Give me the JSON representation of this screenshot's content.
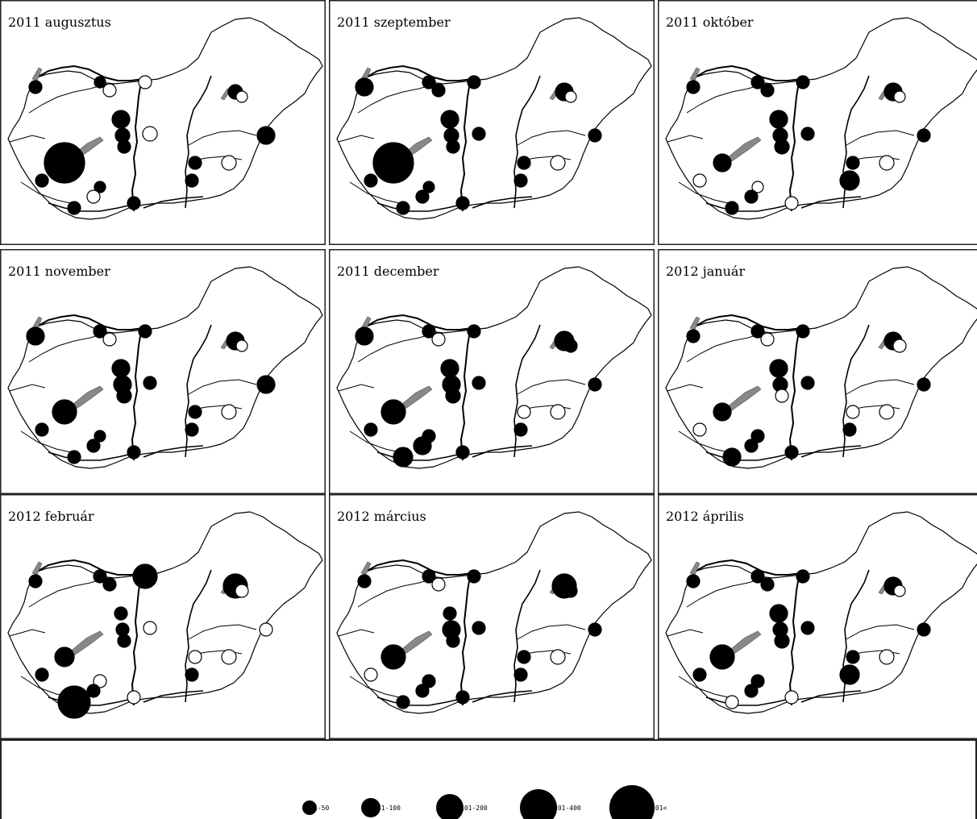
{
  "panels": [
    {
      "title": "2011 augusztus",
      "sites": [
        {
          "site": "1",
          "r": 8
        },
        {
          "site": "2",
          "r": 7
        },
        {
          "site": "3",
          "open": true,
          "r": 8
        },
        {
          "site": "4",
          "open": true,
          "r": 8
        },
        {
          "site": "5",
          "r": 11
        },
        {
          "site": "6",
          "r": 9
        },
        {
          "site": "7",
          "r": 8
        },
        {
          "site": "8",
          "open": true,
          "r": 9
        },
        {
          "site": "9",
          "r": 25
        },
        {
          "site": "10",
          "r": 8
        },
        {
          "site": "11",
          "r": 8
        },
        {
          "site": "12",
          "r": 7
        },
        {
          "site": "13",
          "open": true,
          "r": 8
        },
        {
          "site": "14",
          "r": 8
        },
        {
          "site": "15",
          "r": 9
        },
        {
          "site": "16",
          "open": true,
          "r": 7
        },
        {
          "site": "17",
          "r": 8
        },
        {
          "site": "18",
          "r": 8
        },
        {
          "site": "19",
          "r": 11
        },
        {
          "site": "20",
          "open": true,
          "r": 9
        }
      ]
    },
    {
      "title": "2011 szeptember",
      "sites": [
        {
          "site": "1",
          "r": 11
        },
        {
          "site": "2",
          "r": 8
        },
        {
          "site": "3",
          "r": 8
        },
        {
          "site": "4",
          "r": 8
        },
        {
          "site": "5",
          "r": 11
        },
        {
          "site": "6",
          "r": 9
        },
        {
          "site": "7",
          "r": 8
        },
        {
          "site": "8",
          "r": 8
        },
        {
          "site": "9",
          "r": 25
        },
        {
          "site": "10",
          "r": 8
        },
        {
          "site": "11",
          "r": 8
        },
        {
          "site": "12",
          "r": 7
        },
        {
          "site": "13",
          "r": 8
        },
        {
          "site": "14",
          "r": 8
        },
        {
          "site": "15",
          "r": 11
        },
        {
          "site": "16",
          "open": true,
          "r": 7
        },
        {
          "site": "17",
          "r": 8
        },
        {
          "site": "18",
          "r": 8
        },
        {
          "site": "19",
          "r": 8
        },
        {
          "site": "20",
          "open": true,
          "r": 9
        }
      ]
    },
    {
      "title": "2011 október",
      "sites": [
        {
          "site": "1",
          "r": 8
        },
        {
          "site": "2",
          "r": 8
        },
        {
          "site": "3",
          "r": 8
        },
        {
          "site": "4",
          "r": 8
        },
        {
          "site": "5",
          "r": 11
        },
        {
          "site": "6",
          "r": 9
        },
        {
          "site": "7",
          "r": 9
        },
        {
          "site": "8",
          "r": 8
        },
        {
          "site": "9",
          "r": 11
        },
        {
          "site": "10",
          "open": true,
          "r": 8
        },
        {
          "site": "11",
          "r": 8
        },
        {
          "site": "12",
          "open": true,
          "r": 7
        },
        {
          "site": "13",
          "r": 8
        },
        {
          "site": "14",
          "open": true,
          "r": 8
        },
        {
          "site": "15",
          "r": 11
        },
        {
          "site": "16",
          "open": true,
          "r": 7
        },
        {
          "site": "17",
          "r": 12
        },
        {
          "site": "18",
          "r": 8
        },
        {
          "site": "19",
          "r": 8
        },
        {
          "site": "20",
          "open": true,
          "r": 9
        }
      ]
    },
    {
      "title": "2011 november",
      "sites": [
        {
          "site": "1",
          "r": 11
        },
        {
          "site": "2",
          "r": 8
        },
        {
          "site": "3",
          "open": true,
          "r": 8
        },
        {
          "site": "4",
          "r": 8
        },
        {
          "site": "5",
          "r": 11
        },
        {
          "site": "6",
          "r": 11
        },
        {
          "site": "7",
          "r": 9
        },
        {
          "site": "8",
          "r": 8
        },
        {
          "site": "9",
          "r": 15
        },
        {
          "site": "10",
          "r": 8
        },
        {
          "site": "11",
          "r": 8
        },
        {
          "site": "12",
          "r": 7
        },
        {
          "site": "13",
          "r": 8
        },
        {
          "site": "14",
          "r": 8
        },
        {
          "site": "15",
          "r": 11
        },
        {
          "site": "16",
          "open": true,
          "r": 7
        },
        {
          "site": "17",
          "r": 8
        },
        {
          "site": "18",
          "r": 8
        },
        {
          "site": "19",
          "r": 11
        },
        {
          "site": "20",
          "open": true,
          "r": 9
        }
      ]
    },
    {
      "title": "2011 december",
      "sites": [
        {
          "site": "1",
          "r": 11
        },
        {
          "site": "2",
          "r": 8
        },
        {
          "site": "3",
          "open": true,
          "r": 8
        },
        {
          "site": "4",
          "r": 8
        },
        {
          "site": "5",
          "r": 11
        },
        {
          "site": "6",
          "r": 11
        },
        {
          "site": "7",
          "r": 9
        },
        {
          "site": "8",
          "r": 8
        },
        {
          "site": "9",
          "r": 15
        },
        {
          "site": "10",
          "r": 8
        },
        {
          "site": "11",
          "r": 12
        },
        {
          "site": "12",
          "r": 8
        },
        {
          "site": "13",
          "r": 11
        },
        {
          "site": "14",
          "r": 8
        },
        {
          "site": "15",
          "r": 12
        },
        {
          "site": "16",
          "r": 8
        },
        {
          "site": "17",
          "r": 8
        },
        {
          "site": "18",
          "open": true,
          "r": 8
        },
        {
          "site": "19",
          "r": 8
        },
        {
          "site": "20",
          "open": true,
          "r": 9
        }
      ]
    },
    {
      "title": "2012 január",
      "sites": [
        {
          "site": "1",
          "r": 8
        },
        {
          "site": "2",
          "r": 8
        },
        {
          "site": "3",
          "open": true,
          "r": 8
        },
        {
          "site": "4",
          "r": 8
        },
        {
          "site": "5",
          "r": 11
        },
        {
          "site": "6",
          "r": 9
        },
        {
          "site": "7",
          "open": true,
          "r": 8
        },
        {
          "site": "8",
          "r": 8
        },
        {
          "site": "9",
          "r": 11
        },
        {
          "site": "10",
          "open": true,
          "r": 8
        },
        {
          "site": "11",
          "r": 11
        },
        {
          "site": "12",
          "r": 8
        },
        {
          "site": "13",
          "r": 8
        },
        {
          "site": "14",
          "r": 8
        },
        {
          "site": "15",
          "r": 11
        },
        {
          "site": "16",
          "open": true,
          "r": 8
        },
        {
          "site": "17",
          "r": 8
        },
        {
          "site": "18",
          "open": true,
          "r": 8
        },
        {
          "site": "19",
          "r": 8
        },
        {
          "site": "20",
          "open": true,
          "r": 9
        }
      ]
    },
    {
      "title": "2012 február",
      "sites": [
        {
          "site": "1",
          "r": 8
        },
        {
          "site": "2",
          "r": 8
        },
        {
          "site": "3",
          "r": 8
        },
        {
          "site": "4",
          "r": 15
        },
        {
          "site": "5",
          "r": 8
        },
        {
          "site": "6",
          "r": 8
        },
        {
          "site": "7",
          "r": 8
        },
        {
          "site": "8",
          "open": true,
          "r": 8
        },
        {
          "site": "9",
          "r": 12
        },
        {
          "site": "10",
          "r": 8
        },
        {
          "site": "11",
          "r": 20
        },
        {
          "site": "12",
          "open": true,
          "r": 8
        },
        {
          "site": "13",
          "r": 8
        },
        {
          "site": "14",
          "open": true,
          "r": 8
        },
        {
          "site": "15",
          "r": 15
        },
        {
          "site": "16",
          "open": true,
          "r": 8
        },
        {
          "site": "17",
          "r": 8
        },
        {
          "site": "18",
          "open": true,
          "r": 8
        },
        {
          "site": "19",
          "open": true,
          "r": 8
        },
        {
          "site": "20",
          "open": true,
          "r": 9
        }
      ]
    },
    {
      "title": "2012 március",
      "sites": [
        {
          "site": "1",
          "r": 8
        },
        {
          "site": "2",
          "r": 8
        },
        {
          "site": "3",
          "open": true,
          "r": 8
        },
        {
          "site": "4",
          "r": 8
        },
        {
          "site": "5",
          "r": 8
        },
        {
          "site": "6",
          "r": 11
        },
        {
          "site": "7",
          "r": 8
        },
        {
          "site": "8",
          "r": 8
        },
        {
          "site": "9",
          "r": 15
        },
        {
          "site": "10",
          "open": true,
          "r": 8
        },
        {
          "site": "11",
          "r": 8
        },
        {
          "site": "12",
          "r": 8
        },
        {
          "site": "13",
          "r": 8
        },
        {
          "site": "14",
          "r": 8
        },
        {
          "site": "15",
          "r": 15
        },
        {
          "site": "16",
          "r": 8
        },
        {
          "site": "17",
          "r": 8
        },
        {
          "site": "18",
          "r": 8
        },
        {
          "site": "19",
          "r": 8
        },
        {
          "site": "20",
          "open": true,
          "r": 9
        }
      ]
    },
    {
      "title": "2012 április",
      "sites": [
        {
          "site": "1",
          "r": 8
        },
        {
          "site": "2",
          "r": 8
        },
        {
          "site": "3",
          "r": 8
        },
        {
          "site": "4",
          "r": 8
        },
        {
          "site": "5",
          "r": 11
        },
        {
          "site": "6",
          "r": 9
        },
        {
          "site": "7",
          "r": 9
        },
        {
          "site": "8",
          "r": 8
        },
        {
          "site": "9",
          "r": 15
        },
        {
          "site": "10",
          "r": 8
        },
        {
          "site": "11",
          "open": true,
          "r": 8
        },
        {
          "site": "12",
          "r": 8
        },
        {
          "site": "13",
          "r": 8
        },
        {
          "site": "14",
          "open": true,
          "r": 8
        },
        {
          "site": "15",
          "r": 11
        },
        {
          "site": "16",
          "open": true,
          "r": 7
        },
        {
          "site": "17",
          "r": 12
        },
        {
          "site": "18",
          "r": 8
        },
        {
          "site": "19",
          "r": 8
        },
        {
          "site": "20",
          "open": true,
          "r": 9
        }
      ]
    }
  ],
  "legend": [
    {
      "label": "1-50",
      "size": 1
    },
    {
      "label": "51-100",
      "size": 2
    },
    {
      "label": "101-200",
      "size": 3
    },
    {
      "label": "201-400",
      "size": 4
    },
    {
      "label": "401<",
      "size": 5
    }
  ],
  "colors": {
    "fill": "#000000",
    "open": "#ffffff",
    "outline": "#000000"
  }
}
